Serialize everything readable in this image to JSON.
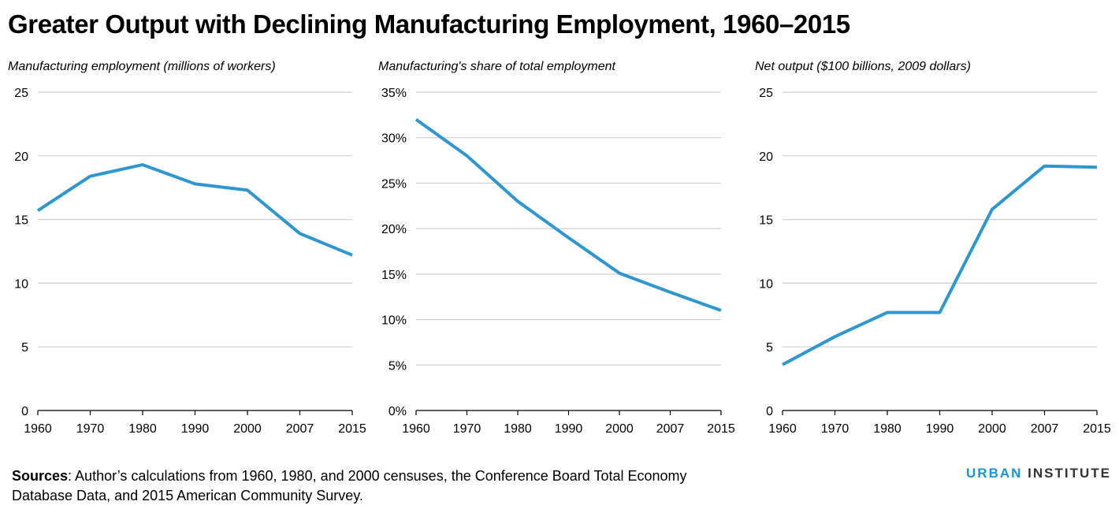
{
  "title": "Greater Output with Declining Manufacturing Employment, 1960–2015",
  "sources": {
    "label": "Sources",
    "text": ": Author’s calculations from 1960, 1980, and 2000 censuses, the Conference Board Total Economy Database Data, and 2015 American Community Survey."
  },
  "brand": {
    "part1": "URBAN",
    "part2": "INSTITUTE"
  },
  "colors": {
    "line": "#2e97cf",
    "grid": "#d0d0d0",
    "axis": "#000000",
    "brand_blue": "#1696d2"
  },
  "chart_data": [
    {
      "type": "line",
      "title": "",
      "subtitle": "Manufacturing employment (millions of workers)",
      "categories": [
        "1960",
        "1970",
        "1980",
        "1990",
        "2000",
        "2007",
        "2015"
      ],
      "series": [
        {
          "values": [
            15.7,
            18.4,
            19.3,
            17.8,
            17.3,
            13.9,
            12.2
          ]
        }
      ],
      "ylim": [
        0,
        25
      ],
      "yticks": [
        0,
        5,
        10,
        15,
        20,
        25
      ],
      "ytick_labels": [
        "0",
        "5",
        "10",
        "15",
        "20",
        "25"
      ],
      "grid": true
    },
    {
      "type": "line",
      "title": "",
      "subtitle": "Manufacturing's share of total employment",
      "categories": [
        "1960",
        "1970",
        "1980",
        "1990",
        "2000",
        "2007",
        "2015"
      ],
      "series": [
        {
          "values": [
            32,
            28,
            23,
            19,
            15.1,
            13,
            11
          ]
        }
      ],
      "ylim": [
        0,
        35
      ],
      "yticks": [
        0,
        5,
        10,
        15,
        20,
        25,
        30,
        35
      ],
      "ytick_labels": [
        "0%",
        "5%",
        "10%",
        "15%",
        "20%",
        "25%",
        "30%",
        "35%"
      ],
      "grid": true
    },
    {
      "type": "line",
      "title": "",
      "subtitle": "Net output ($100 billions, 2009 dollars)",
      "categories": [
        "1960",
        "1970",
        "1980",
        "1990",
        "2000",
        "2007",
        "2015"
      ],
      "series": [
        {
          "values": [
            3.6,
            5.8,
            7.7,
            7.7,
            15.8,
            19.2,
            19.1
          ]
        }
      ],
      "ylim": [
        0,
        25
      ],
      "yticks": [
        0,
        5,
        10,
        15,
        20,
        25
      ],
      "ytick_labels": [
        "0",
        "5",
        "10",
        "15",
        "20",
        "25"
      ],
      "grid": true
    }
  ]
}
